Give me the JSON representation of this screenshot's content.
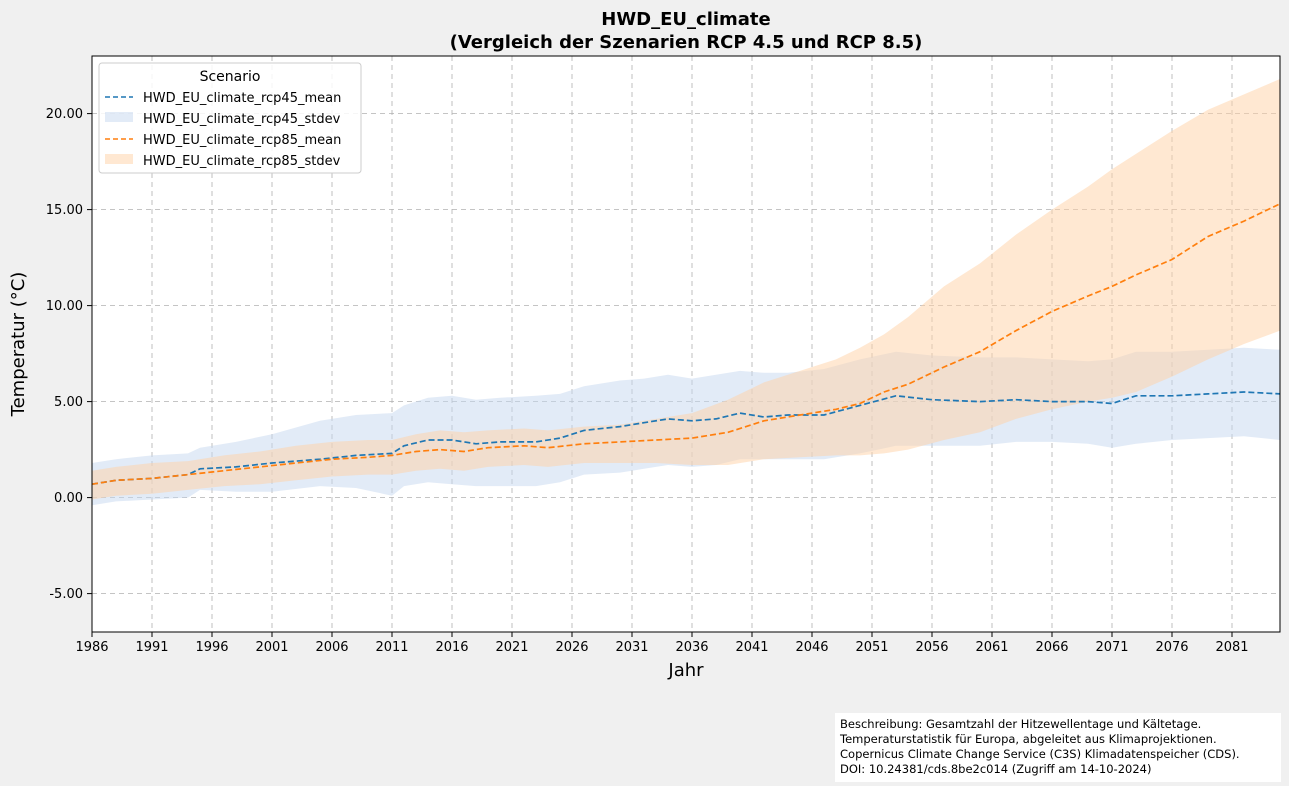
{
  "chart_data": {
    "type": "line",
    "title": "HWD_EU_climate",
    "subtitle": "(Vergleich der Szenarien RCP 4.5 und RCP 8.5)",
    "xlabel": "Jahr",
    "ylabel": "Temperatur (°C)",
    "xlim": [
      1986,
      2085
    ],
    "ylim": [
      -7,
      23
    ],
    "xticks": [
      "1986",
      "1991",
      "1996",
      "2001",
      "2006",
      "2011",
      "2016",
      "2021",
      "2026",
      "2031",
      "2036",
      "2041",
      "2046",
      "2051",
      "2056",
      "2061",
      "2066",
      "2071",
      "2076",
      "2081"
    ],
    "yticks": [
      "-5.00",
      "0.00",
      "5.00",
      "10.00",
      "15.00",
      "20.00"
    ],
    "grid": true,
    "legend": {
      "title": "Scenario",
      "position": "top-left",
      "entries": [
        "HWD_EU_climate_rcp45_mean",
        "HWD_EU_climate_rcp45_stdev",
        "HWD_EU_climate_rcp85_mean",
        "HWD_EU_climate_rcp85_stdev"
      ]
    },
    "colors": {
      "rcp45_line": "#1f77b4",
      "rcp45_band": "#c6d8ef",
      "rcp85_line": "#ff7f0e",
      "rcp85_band": "#ffd2a6"
    },
    "series": [
      {
        "name": "HWD_EU_climate_rcp45_mean",
        "style": "dashed-line",
        "x": [
          1986,
          1988,
          1991,
          1994,
          1995,
          1998,
          2001,
          2005,
          2008,
          2011,
          2012,
          2014,
          2016,
          2018,
          2020,
          2023,
          2025,
          2027,
          2030,
          2032,
          2034,
          2036,
          2038,
          2040,
          2042,
          2044,
          2047,
          2050,
          2053,
          2056,
          2060,
          2063,
          2066,
          2069,
          2071,
          2073,
          2076,
          2079,
          2082,
          2085
        ],
        "values": [
          0.7,
          0.9,
          1.0,
          1.2,
          1.5,
          1.6,
          1.8,
          2.0,
          2.2,
          2.3,
          2.7,
          3.0,
          3.0,
          2.8,
          2.9,
          2.9,
          3.1,
          3.5,
          3.7,
          3.9,
          4.1,
          4.0,
          4.1,
          4.4,
          4.2,
          4.3,
          4.3,
          4.8,
          5.3,
          5.1,
          5.0,
          5.1,
          5.0,
          5.0,
          4.9,
          5.3,
          5.3,
          5.4,
          5.5,
          5.4
        ]
      },
      {
        "name": "HWD_EU_climate_rcp45_stdev",
        "style": "band",
        "x": [
          1986,
          1988,
          1991,
          1994,
          1995,
          1998,
          2001,
          2005,
          2008,
          2011,
          2012,
          2014,
          2016,
          2018,
          2020,
          2023,
          2025,
          2027,
          2030,
          2032,
          2034,
          2036,
          2038,
          2040,
          2042,
          2044,
          2047,
          2050,
          2053,
          2056,
          2060,
          2063,
          2066,
          2069,
          2071,
          2073,
          2076,
          2079,
          2082,
          2085
        ],
        "lower": [
          -0.4,
          -0.2,
          -0.1,
          0.0,
          0.4,
          0.3,
          0.3,
          0.6,
          0.5,
          0.1,
          0.6,
          0.8,
          0.7,
          0.6,
          0.6,
          0.6,
          0.8,
          1.2,
          1.3,
          1.5,
          1.7,
          1.6,
          1.7,
          2.0,
          2.0,
          2.0,
          2.0,
          2.3,
          2.7,
          2.7,
          2.7,
          2.9,
          2.9,
          2.8,
          2.6,
          2.8,
          3.0,
          3.1,
          3.2,
          3.0
        ],
        "upper": [
          1.8,
          2.0,
          2.2,
          2.3,
          2.6,
          2.9,
          3.3,
          4.0,
          4.3,
          4.4,
          4.8,
          5.2,
          5.3,
          5.1,
          5.2,
          5.3,
          5.4,
          5.8,
          6.1,
          6.2,
          6.4,
          6.2,
          6.4,
          6.6,
          6.5,
          6.5,
          6.7,
          7.2,
          7.6,
          7.4,
          7.3,
          7.3,
          7.2,
          7.1,
          7.2,
          7.6,
          7.6,
          7.7,
          7.8,
          7.7
        ]
      },
      {
        "name": "HWD_EU_climate_rcp85_mean",
        "style": "dashed-line",
        "x": [
          1986,
          1988,
          1991,
          1994,
          1997,
          2000,
          2003,
          2006,
          2009,
          2011,
          2013,
          2015,
          2017,
          2019,
          2022,
          2024,
          2027,
          2030,
          2033,
          2036,
          2039,
          2042,
          2045,
          2048,
          2050,
          2052,
          2054,
          2057,
          2060,
          2063,
          2066,
          2069,
          2071,
          2073,
          2076,
          2079,
          2082,
          2085
        ],
        "values": [
          0.7,
          0.9,
          1.0,
          1.2,
          1.4,
          1.6,
          1.8,
          2.0,
          2.1,
          2.2,
          2.4,
          2.5,
          2.4,
          2.6,
          2.7,
          2.6,
          2.8,
          2.9,
          3.0,
          3.1,
          3.4,
          4.0,
          4.3,
          4.6,
          4.9,
          5.5,
          5.9,
          6.8,
          7.6,
          8.7,
          9.7,
          10.5,
          11.0,
          11.6,
          12.4,
          13.6,
          14.4,
          15.3
        ]
      },
      {
        "name": "HWD_EU_climate_rcp85_stdev",
        "style": "band",
        "x": [
          1986,
          1988,
          1991,
          1994,
          1997,
          2000,
          2003,
          2006,
          2009,
          2011,
          2013,
          2015,
          2017,
          2019,
          2022,
          2024,
          2027,
          2030,
          2033,
          2036,
          2039,
          2042,
          2045,
          2048,
          2050,
          2052,
          2054,
          2057,
          2060,
          2063,
          2066,
          2069,
          2071,
          2073,
          2076,
          2079,
          2082,
          2085
        ],
        "lower": [
          -0.1,
          0.1,
          0.2,
          0.4,
          0.6,
          0.7,
          0.9,
          1.1,
          1.2,
          1.2,
          1.4,
          1.5,
          1.4,
          1.6,
          1.7,
          1.6,
          1.8,
          1.8,
          1.8,
          1.7,
          1.7,
          2.0,
          2.1,
          2.2,
          2.2,
          2.3,
          2.5,
          3.0,
          3.4,
          4.1,
          4.6,
          5.0,
          5.2,
          5.5,
          6.3,
          7.2,
          8.0,
          8.7
        ],
        "upper": [
          1.4,
          1.6,
          1.8,
          1.9,
          2.2,
          2.4,
          2.7,
          2.9,
          3.0,
          3.0,
          3.3,
          3.5,
          3.4,
          3.5,
          3.6,
          3.5,
          3.7,
          3.8,
          4.1,
          4.4,
          5.1,
          6.0,
          6.6,
          7.2,
          7.8,
          8.5,
          9.4,
          11.0,
          12.2,
          13.7,
          15.0,
          16.2,
          17.1,
          17.9,
          19.1,
          20.2,
          21.0,
          21.8
        ]
      }
    ]
  },
  "note": {
    "lines": [
      "Beschreibung: Gesamtzahl der Hitzewellentage und Kältetage.",
      "Temperaturstatistik für Europa, abgeleitet aus Klimaprojektionen.",
      "Copernicus Climate Change Service (C3S) Klimadatenspeicher (CDS).",
      "DOI: 10.24381/cds.8be2c014 (Zugriff am 14-10-2024)"
    ]
  }
}
